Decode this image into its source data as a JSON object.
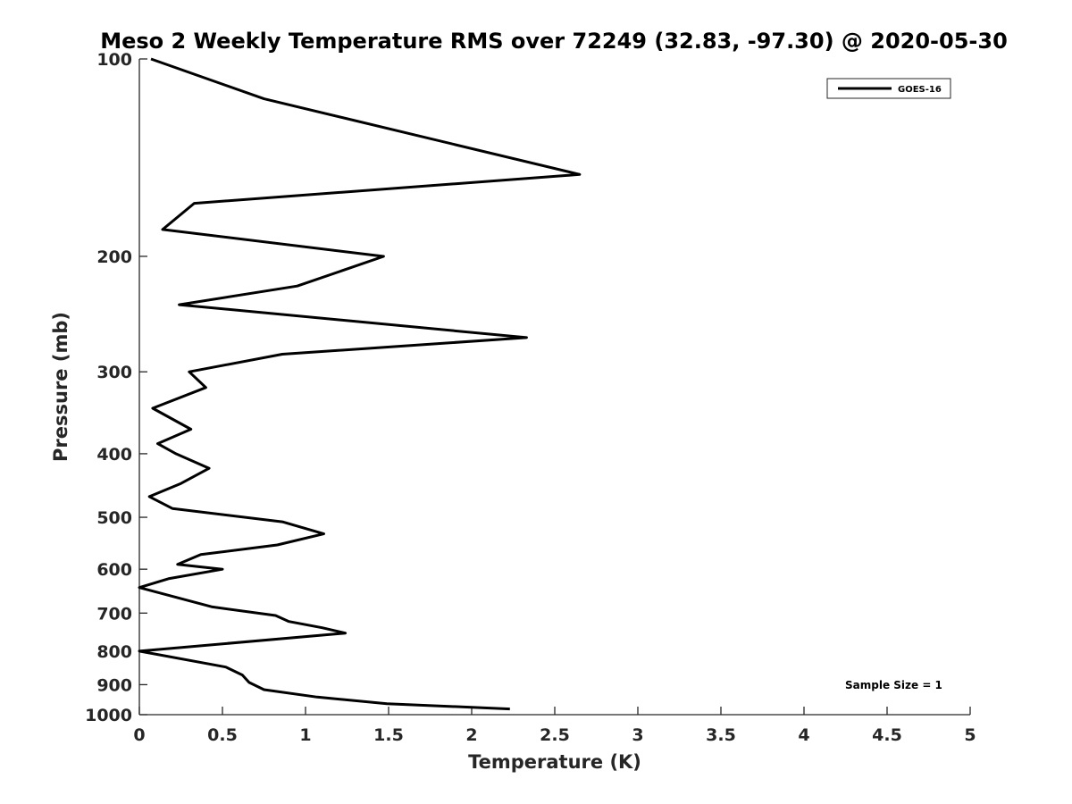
{
  "chart_data": {
    "type": "line",
    "title": "Meso 2 Weekly Temperature RMS over 72249 (32.83, -97.30) @ 2020-05-30",
    "xlabel": "Temperature (K)",
    "ylabel": "Pressure (mb)",
    "xlim": [
      0,
      5
    ],
    "ylim": [
      100,
      1000
    ],
    "yscale": "log",
    "y_reversed": true,
    "x_ticks": [
      "0",
      "0.5",
      "1",
      "1.5",
      "2",
      "2.5",
      "3",
      "3.5",
      "4",
      "4.5",
      "5"
    ],
    "y_ticks": [
      "100",
      "200",
      "300",
      "400",
      "500",
      "600",
      "700",
      "800",
      "900",
      "1000"
    ],
    "grid": false,
    "legend_position": "top-right",
    "series": [
      {
        "name": "GOES-16",
        "color": "#000000",
        "x": [
          0.07,
          0.75,
          2.65,
          0.33,
          0.14,
          1.47,
          0.95,
          0.24,
          2.33,
          0.86,
          0.3,
          0.4,
          0.08,
          0.31,
          0.11,
          0.22,
          0.42,
          0.25,
          0.06,
          0.2,
          0.86,
          1.11,
          0.83,
          0.37,
          0.23,
          0.5,
          0.18,
          0.0,
          0.44,
          0.82,
          0.9,
          1.1,
          1.24,
          0.0,
          0.52,
          0.62,
          0.66,
          0.75,
          1.07,
          1.49,
          2.23
        ],
        "y": [
          100,
          115,
          150,
          166,
          182,
          200,
          222,
          237,
          266,
          282,
          300,
          317,
          341,
          367,
          386,
          400,
          421,
          444,
          465,
          485,
          508,
          530,
          551,
          570,
          590,
          600,
          620,
          640,
          685,
          706,
          721,
          737,
          751,
          800,
          846,
          870,
          893,
          916,
          940,
          962,
          980
        ]
      }
    ],
    "annotation": "Sample Size = 1"
  }
}
